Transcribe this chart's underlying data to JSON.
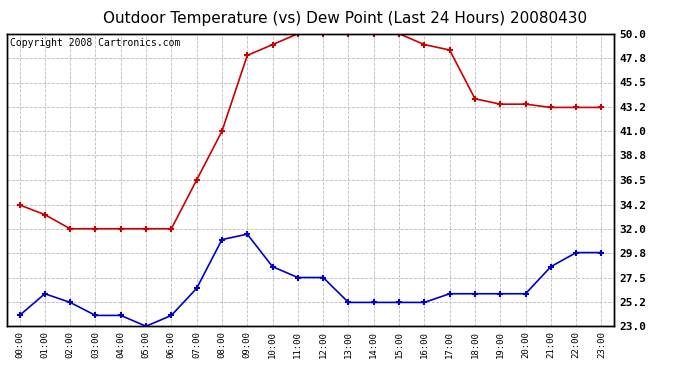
{
  "title": "Outdoor Temperature (vs) Dew Point (Last 24 Hours) 20080430",
  "copyright": "Copyright 2008 Cartronics.com",
  "hours": [
    "00:00",
    "01:00",
    "02:00",
    "03:00",
    "04:00",
    "05:00",
    "06:00",
    "07:00",
    "08:00",
    "09:00",
    "10:00",
    "11:00",
    "12:00",
    "13:00",
    "14:00",
    "15:00",
    "16:00",
    "17:00",
    "18:00",
    "19:00",
    "20:00",
    "21:00",
    "22:00",
    "23:00"
  ],
  "temp": [
    34.2,
    33.3,
    32.0,
    32.0,
    32.0,
    32.0,
    32.0,
    36.5,
    41.0,
    48.0,
    49.0,
    50.0,
    50.0,
    50.0,
    50.0,
    50.0,
    49.0,
    48.5,
    44.0,
    43.5,
    43.5,
    43.2,
    43.2,
    43.2
  ],
  "dewpoint": [
    24.0,
    26.0,
    25.2,
    24.0,
    24.0,
    23.0,
    24.0,
    26.5,
    31.0,
    31.5,
    28.5,
    27.5,
    27.5,
    25.2,
    25.2,
    25.2,
    25.2,
    26.0,
    26.0,
    26.0,
    26.0,
    28.5,
    29.8,
    29.8
  ],
  "temp_color": "#cc0000",
  "dew_color": "#0000cc",
  "background_color": "#ffffff",
  "grid_color": "#bbbbbb",
  "ylim": [
    23.0,
    50.0
  ],
  "yticks": [
    23.0,
    25.2,
    27.5,
    29.8,
    32.0,
    34.2,
    36.5,
    38.8,
    41.0,
    43.2,
    45.5,
    47.8,
    50.0
  ],
  "title_fontsize": 11,
  "copyright_fontsize": 7
}
